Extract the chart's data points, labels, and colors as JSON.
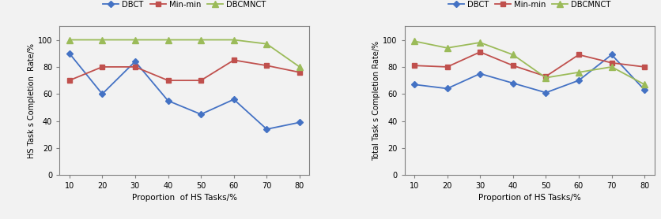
{
  "x": [
    10,
    20,
    30,
    40,
    50,
    60,
    70,
    80
  ],
  "left_chart": {
    "ylabel": "HS Task s Completion  Rate/%",
    "xlabel": "Proportion  of HS Tasks/%",
    "DBCT": [
      90,
      60,
      84,
      55,
      45,
      56,
      34,
      39
    ],
    "Min_min": [
      70,
      80,
      80,
      70,
      70,
      85,
      81,
      76
    ],
    "DBCMNCT": [
      100,
      100,
      100,
      100,
      100,
      100,
      97,
      80
    ]
  },
  "right_chart": {
    "ylabel": "Total Task s Completion Rate/%",
    "xlabel": "Proportion of HS Tasks/%",
    "DBCT": [
      67,
      64,
      75,
      68,
      61,
      70,
      89,
      63
    ],
    "Min_min": [
      81,
      80,
      91,
      81,
      73,
      89,
      83,
      80
    ],
    "DBCMNCT": [
      99,
      94,
      98,
      89,
      72,
      76,
      80,
      67
    ]
  },
  "colors": {
    "DBCT": "#4472C4",
    "Min_min": "#C0504D",
    "DBCMNCT": "#9BBB59"
  },
  "ylim": [
    0,
    110
  ],
  "yticks": [
    0,
    20,
    40,
    60,
    80,
    100
  ],
  "background": "#F2F2F2"
}
